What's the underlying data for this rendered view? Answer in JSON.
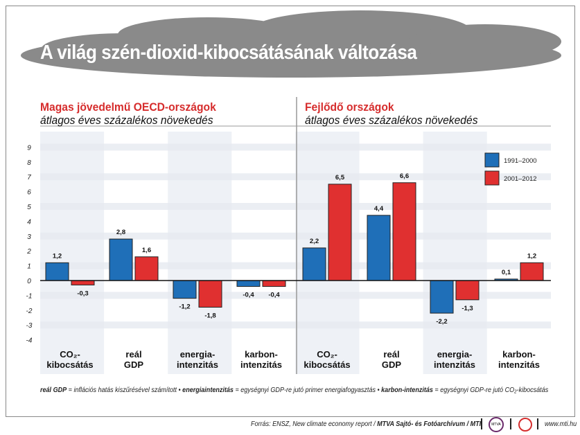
{
  "title": "A világ szén-dioxid-kibocsátásának változása",
  "panels": [
    {
      "heading": "Magas jövedelmű OECD-országok",
      "subheading": "átlagos éves százalékos növekedés"
    },
    {
      "heading": "Fejlődő országok",
      "subheading": "átlagos éves százalékos növekedés"
    }
  ],
  "chart_data": {
    "type": "bar",
    "ylim": [
      -4,
      9
    ],
    "yticks": [
      "9",
      "8",
      "7",
      "6",
      "5",
      "4",
      "3",
      "2",
      "1",
      "0",
      "-1",
      "-2",
      "-3",
      "-4"
    ],
    "legend_position": "top-right",
    "grid": true,
    "groups": [
      {
        "panel": 0,
        "category": [
          "CO₂-",
          "kibocsátás"
        ],
        "values": [
          1.2,
          -0.3
        ],
        "labels": [
          "1,2",
          "-0,3"
        ]
      },
      {
        "panel": 0,
        "category": [
          "reál",
          "GDP"
        ],
        "values": [
          2.8,
          1.6
        ],
        "labels": [
          "2,8",
          "1,6"
        ]
      },
      {
        "panel": 0,
        "category": [
          "energia-",
          "intenzitás"
        ],
        "values": [
          -1.2,
          -1.8
        ],
        "labels": [
          "-1,2",
          "-1,8"
        ]
      },
      {
        "panel": 0,
        "category": [
          "karbon-",
          "intenzitás"
        ],
        "values": [
          -0.4,
          -0.4
        ],
        "labels": [
          "-0,4",
          "-0,4"
        ]
      },
      {
        "panel": 1,
        "category": [
          "CO₂-",
          "kibocsátás"
        ],
        "values": [
          2.2,
          6.5
        ],
        "labels": [
          "2,2",
          "6,5"
        ]
      },
      {
        "panel": 1,
        "category": [
          "reál",
          "GDP"
        ],
        "values": [
          4.4,
          6.6
        ],
        "labels": [
          "4,4",
          "6,6"
        ]
      },
      {
        "panel": 1,
        "category": [
          "energia-",
          "intenzitás"
        ],
        "values": [
          -2.2,
          -1.3
        ],
        "labels": [
          "-2,2",
          "-1,3"
        ]
      },
      {
        "panel": 1,
        "category": [
          "karbon-",
          "intenzitás"
        ],
        "values": [
          0.1,
          1.2
        ],
        "labels": [
          "0,1",
          "1,2"
        ]
      }
    ],
    "series": [
      {
        "name": "1991–2000",
        "color": "#1f6fb8"
      },
      {
        "name": "2001–2012",
        "color": "#e03030"
      }
    ]
  },
  "footnote": {
    "t1": "reál GDP",
    "t2": " = inflációs hatás kiszűrésével számított • ",
    "t3": "energiaintenzitás",
    "t4": " = egységnyi GDP-re jutó primer energiafogyasztás • ",
    "t5": "karbon-intenzitás",
    "t6": " = egységnyi GDP-re jutó CO₂-kibocsátás"
  },
  "source": {
    "prefix": "Forrás: ENSZ, New climate economy report / ",
    "bold": "MTVA Sajtó- és Fotóarchívum / MTI",
    "logo1": "MTVA",
    "web": "www.mti.hu"
  }
}
